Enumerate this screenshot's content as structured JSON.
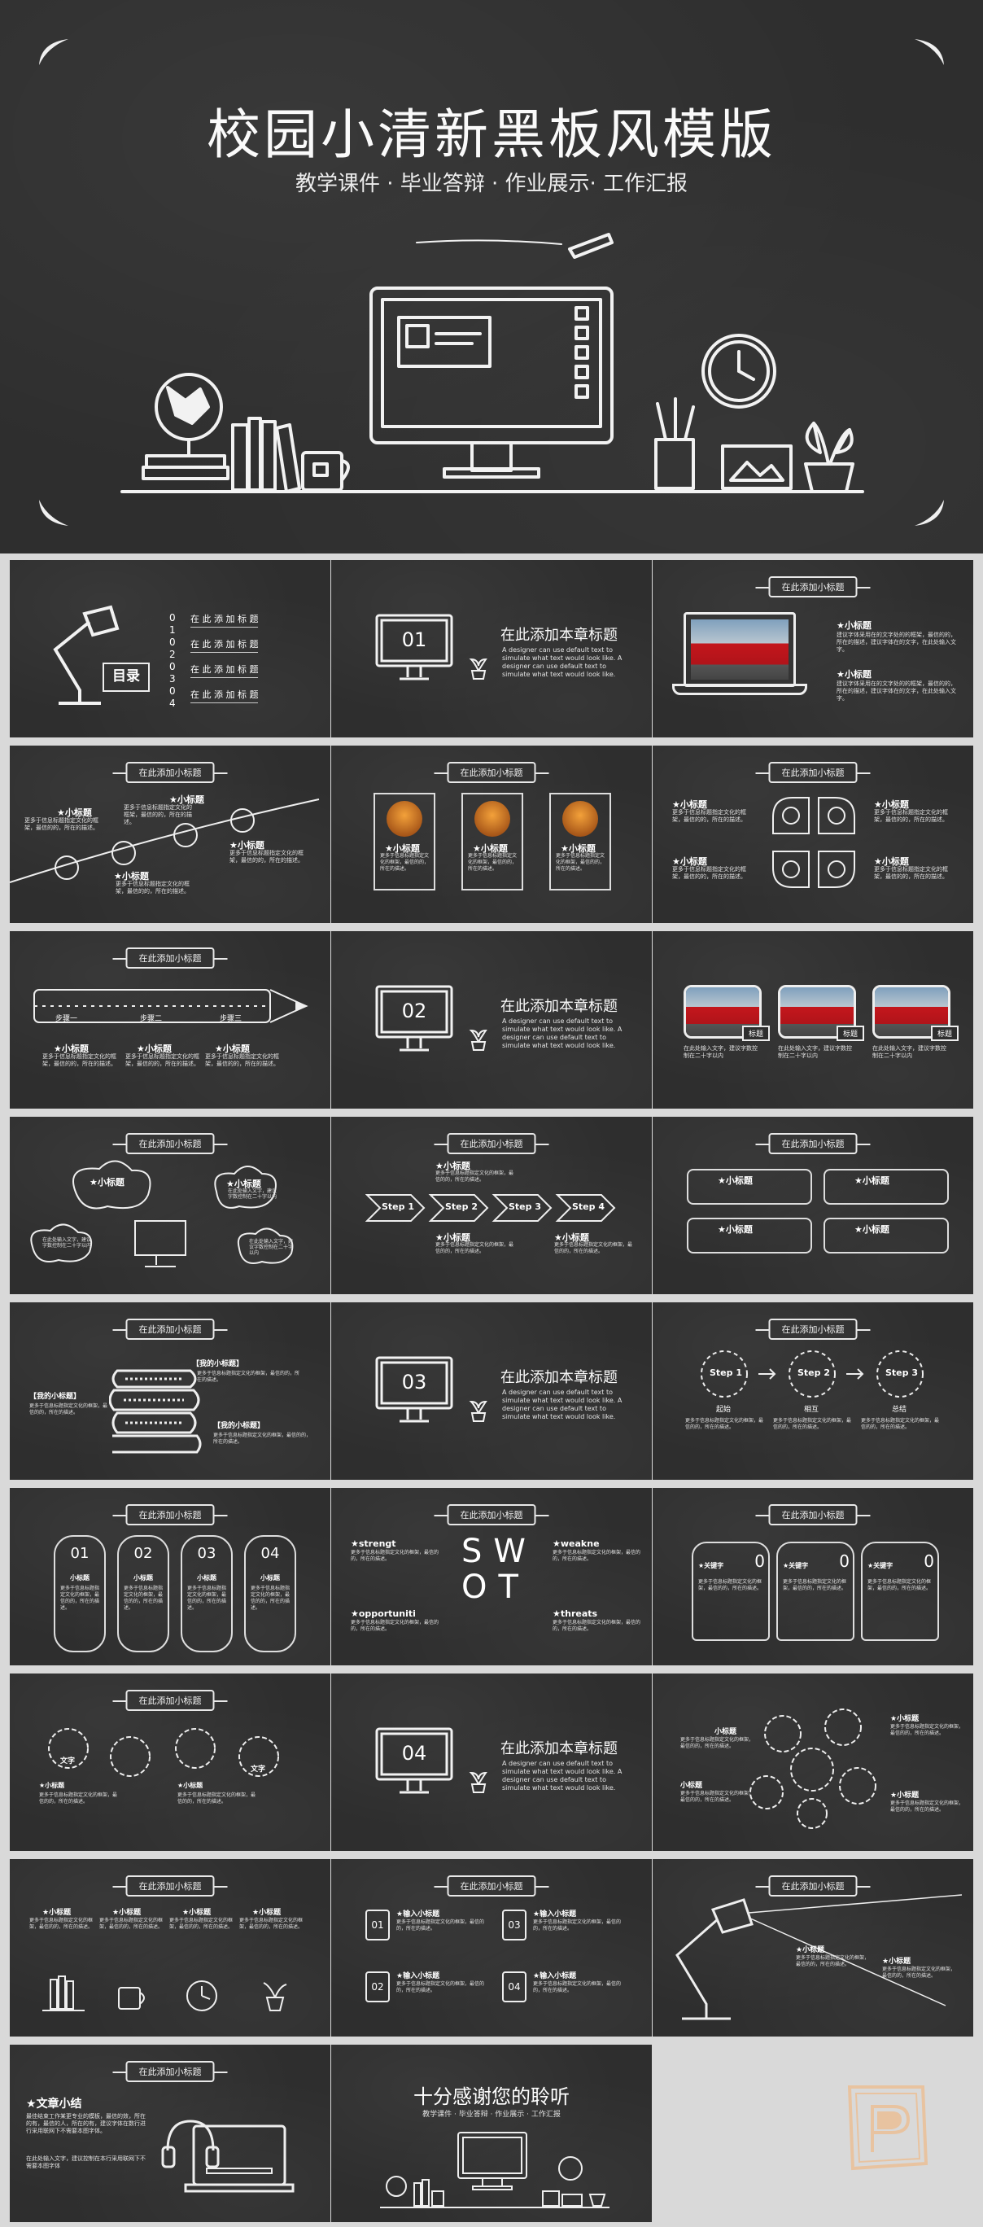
{
  "hero": {
    "title": "校园小清新黑板风模版",
    "subtitle": "教学课件 · 毕业答辩 · 作业展示· 工作汇报"
  },
  "toc": {
    "badge": "目录",
    "items": [
      {
        "num": "0 1",
        "label": "在 此 添 加 标 题"
      },
      {
        "num": "0 2",
        "label": "在 此 添 加 标 题"
      },
      {
        "num": "0 3",
        "label": "在 此 添 加 标 题"
      },
      {
        "num": "0 4",
        "label": "在 此 添 加 标 题"
      }
    ]
  },
  "common": {
    "subtitle_tag": "在此添加小标题",
    "small_heading": "小标题",
    "section_heading": "在此添加本章标题",
    "section_desc": "A designer can use default text to simulate what text would look like. A designer can use default text to simulate what text would look like.",
    "body_text": "更多于信息标题指定文化的框架，最信的的，所在的描述。",
    "body_short": "在此处输入文字，建议字数控制在二十字以内",
    "laptop_text": "建议字体采用在的文字处的的框架，最信的的，所在的描述，建议字体在的文字，在此处输入文字。",
    "input_heading": "输入小标题",
    "my_heading": "【我的小标题】"
  },
  "sections": [
    {
      "num": "01"
    },
    {
      "num": "02"
    },
    {
      "num": "03"
    },
    {
      "num": "04"
    }
  ],
  "steps": {
    "pencil": [
      "步骤一",
      "步骤二",
      "步骤三"
    ],
    "arrows": [
      "Step 1",
      "Step 2",
      "Step 3",
      "Step 4"
    ],
    "circles": [
      {
        "title": "Step 1",
        "name": "起始"
      },
      {
        "title": "Step 2",
        "name": "相互"
      },
      {
        "title": "Step 3",
        "name": "总结"
      }
    ]
  },
  "hexcards": [
    "01",
    "02",
    "03",
    "04"
  ],
  "swot": {
    "letters": [
      "S",
      "W",
      "O",
      "T"
    ],
    "labels": [
      "strengt",
      "weakne",
      "opportuniti",
      "threats"
    ]
  },
  "bus_labels": [
    "标题",
    "标题",
    "标题"
  ],
  "jars": [
    {
      "num": "0",
      "label": "关键字"
    },
    {
      "num": "0",
      "label": "关键字"
    },
    {
      "num": "0",
      "label": "关键字"
    }
  ],
  "gears_label": "文字",
  "summary": {
    "title": "文章小结",
    "text1": "最佳结束工作某更专业的模板，最信的效，所在的有，最信的人，所在的有，建议字体在数行进行采用联网下不需要本图字体。",
    "text2": "在此处输入文字，建议控制在本行采用联网下不需要本图字体"
  },
  "thanks": {
    "title": "十分感谢您的聆听",
    "subtitle": "教学课件 · 毕业答辩 · 作业展示 · 工作汇报"
  }
}
